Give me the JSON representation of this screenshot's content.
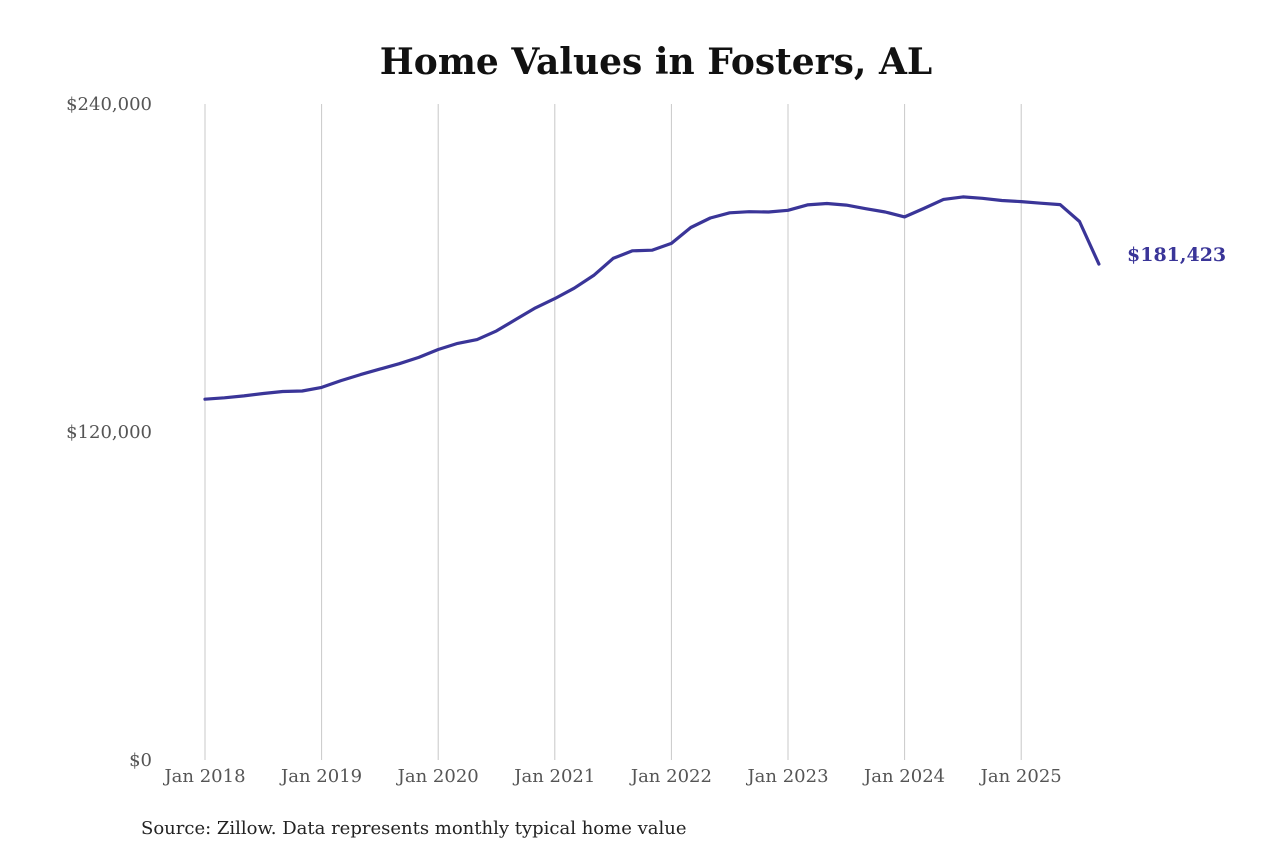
{
  "chart_data": {
    "type": "line",
    "title": "Home Values in Fosters, AL",
    "xlabel": "",
    "ylabel": "",
    "ylim": [
      0,
      240000
    ],
    "yticks": [
      {
        "value": 0,
        "label": "$0"
      },
      {
        "value": 120000,
        "label": "$120,000"
      },
      {
        "value": 240000,
        "label": "$240,000"
      }
    ],
    "xticks": [
      {
        "value": "2018-01",
        "label": "Jan 2018"
      },
      {
        "value": "2019-01",
        "label": "Jan 2019"
      },
      {
        "value": "2020-01",
        "label": "Jan 2020"
      },
      {
        "value": "2021-01",
        "label": "Jan 2021"
      },
      {
        "value": "2022-01",
        "label": "Jan 2022"
      },
      {
        "value": "2023-01",
        "label": "Jan 2023"
      },
      {
        "value": "2024-01",
        "label": "Jan 2024"
      },
      {
        "value": "2025-01",
        "label": "Jan 2025"
      }
    ],
    "grid": "vertical",
    "line_color": "#3a3598",
    "series": [
      {
        "x": [
          "2018-01",
          "2018-03",
          "2018-05",
          "2018-07",
          "2018-09",
          "2018-11",
          "2019-01",
          "2019-03",
          "2019-05",
          "2019-07",
          "2019-09",
          "2019-11",
          "2020-01",
          "2020-03",
          "2020-05",
          "2020-07",
          "2020-09",
          "2020-11",
          "2021-01",
          "2021-03",
          "2021-05",
          "2021-07",
          "2021-09",
          "2021-11",
          "2022-01",
          "2022-03",
          "2022-05",
          "2022-07",
          "2022-09",
          "2022-11",
          "2023-01",
          "2023-03",
          "2023-05",
          "2023-07",
          "2023-09",
          "2023-11",
          "2024-01",
          "2024-03",
          "2024-05",
          "2024-07",
          "2024-09",
          "2024-11",
          "2025-01",
          "2025-03",
          "2025-05",
          "2025-07",
          "2025-09"
        ],
        "values": [
          132000,
          132500,
          133200,
          134100,
          134800,
          135000,
          136300,
          138800,
          141000,
          143000,
          145000,
          147300,
          150200,
          152400,
          153800,
          157000,
          161200,
          165400,
          168800,
          172600,
          177300,
          183500,
          186300,
          186500,
          189000,
          194800,
          198300,
          200200,
          200600,
          200500,
          201100,
          203100,
          203600,
          203000,
          201700,
          200500,
          198700,
          201800,
          205100,
          206000,
          205500,
          204700,
          204300,
          203700,
          203200,
          197000,
          181423
        ]
      }
    ],
    "end_label": "$181,423"
  },
  "source_note": "Source: Zillow. Data represents monthly typical home value"
}
